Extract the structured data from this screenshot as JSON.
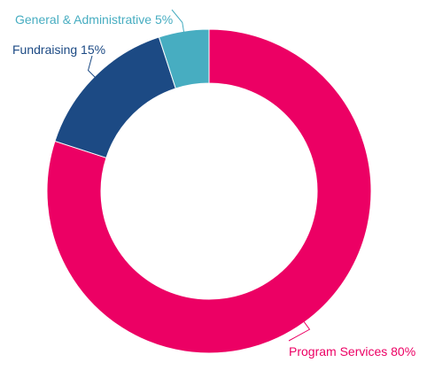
{
  "chart_data": {
    "type": "pie",
    "style": "donut",
    "labels_text": [
      "Program Services 80%",
      "Fundraising 15%",
      "General & Administrative 5%"
    ],
    "series": [
      {
        "name": "Program Services",
        "value": 80,
        "color": "#ec0064"
      },
      {
        "name": "Fundraising",
        "value": 15,
        "color": "#1c4a84"
      },
      {
        "name": "General & Administrative",
        "value": 5,
        "color": "#47adc1"
      }
    ],
    "legend": "none",
    "label_placement": "outside with leader lines"
  }
}
